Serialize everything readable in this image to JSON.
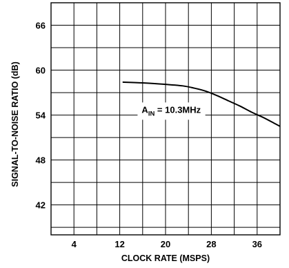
{
  "chart_data": {
    "type": "line",
    "xlabel": "CLOCK RATE (MSPS)",
    "ylabel": "SIGNAL-TO-NOISE RATIO (dB)",
    "xlim": [
      0,
      40
    ],
    "ylim": [
      38,
      69
    ],
    "x_ticks": [
      4,
      12,
      20,
      28,
      36
    ],
    "y_ticks": [
      42,
      48,
      54,
      60,
      66
    ],
    "x_grid": [
      0,
      4,
      8,
      12,
      16,
      20,
      24,
      28,
      32,
      36,
      40
    ],
    "y_grid": [
      39,
      42,
      45,
      48,
      51,
      54,
      57,
      60,
      63,
      66,
      69
    ],
    "grid": true,
    "annotation": {
      "main": "A",
      "sub": "IN",
      "rest": " = 10.3MHz",
      "x": 21,
      "y": 54.3
    },
    "series": [
      {
        "x": [
          12.5,
          16,
          20,
          23,
          25,
          27,
          29,
          31,
          33,
          35,
          37,
          39,
          40
        ],
        "y": [
          58.4,
          58.3,
          58.1,
          57.9,
          57.6,
          57.2,
          56.6,
          55.9,
          55.2,
          54.4,
          53.7,
          52.9,
          52.5
        ]
      }
    ]
  }
}
